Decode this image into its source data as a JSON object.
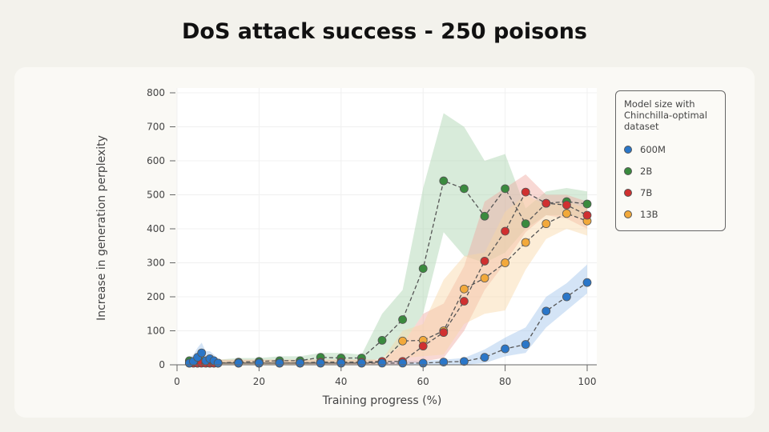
{
  "title": "DoS attack success - 250 poisons",
  "chart_data": {
    "type": "line",
    "title": "DoS attack success - 250 poisons",
    "xlabel": "Training progress (%)",
    "ylabel": "Increase in generation perplexity",
    "xlim": [
      0,
      100
    ],
    "ylim": [
      0,
      800
    ],
    "xticks": [
      "0",
      "20",
      "40",
      "60",
      "80",
      "100"
    ],
    "yticks": [
      "0",
      "100",
      "200",
      "300",
      "400",
      "500",
      "600",
      "700",
      "800"
    ],
    "grid": true,
    "legend_position": "right",
    "legend_title": "Model size with Chinchilla-optimal dataset",
    "x": [
      3,
      4,
      5,
      6,
      7,
      8,
      9,
      10,
      15,
      20,
      25,
      30,
      35,
      40,
      45,
      50,
      55,
      60,
      65,
      70,
      75,
      80,
      85,
      90,
      95,
      100
    ],
    "series": [
      {
        "name": "600M",
        "color": "#2a76c8",
        "band_color": "#9fc3ea",
        "values": [
          5,
          10,
          22,
          35,
          12,
          18,
          12,
          5,
          5,
          5,
          5,
          5,
          5,
          5,
          5,
          5,
          5,
          5,
          8,
          10,
          22,
          47,
          60,
          158,
          200,
          242
        ],
        "lower": [
          0,
          0,
          5,
          10,
          0,
          5,
          0,
          0,
          0,
          0,
          0,
          0,
          0,
          0,
          0,
          0,
          0,
          0,
          0,
          0,
          5,
          25,
          35,
          110,
          160,
          210
        ],
        "upper": [
          20,
          30,
          50,
          65,
          40,
          40,
          30,
          15,
          12,
          12,
          12,
          12,
          12,
          12,
          12,
          12,
          12,
          12,
          15,
          20,
          45,
          80,
          110,
          200,
          240,
          295
        ]
      },
      {
        "name": "2B",
        "color": "#3a8a3e",
        "band_color": "#a8d2ad",
        "values": [
          12,
          8,
          5,
          10,
          8,
          5,
          5,
          5,
          8,
          10,
          12,
          12,
          22,
          20,
          20,
          72,
          133,
          283,
          541,
          518,
          437,
          518,
          415,
          475,
          480,
          473
        ],
        "lower": [
          0,
          0,
          0,
          0,
          0,
          0,
          0,
          0,
          0,
          0,
          0,
          0,
          5,
          5,
          5,
          20,
          60,
          150,
          390,
          320,
          300,
          330,
          400,
          440,
          440,
          430
        ],
        "upper": [
          25,
          20,
          15,
          20,
          20,
          15,
          15,
          15,
          20,
          20,
          25,
          25,
          35,
          35,
          30,
          150,
          220,
          520,
          740,
          700,
          600,
          620,
          460,
          510,
          520,
          510
        ]
      },
      {
        "name": "7B",
        "color": "#d03030",
        "band_color": "#f0a9a0",
        "values": [
          5,
          5,
          5,
          5,
          5,
          5,
          5,
          5,
          5,
          5,
          5,
          5,
          8,
          8,
          8,
          10,
          10,
          55,
          95,
          187,
          305,
          393,
          508,
          475,
          470,
          440
        ],
        "lower": [
          0,
          0,
          0,
          0,
          0,
          0,
          0,
          0,
          0,
          0,
          0,
          0,
          0,
          0,
          0,
          0,
          0,
          10,
          20,
          100,
          220,
          300,
          390,
          440,
          430,
          400
        ],
        "upper": [
          15,
          15,
          15,
          15,
          15,
          15,
          15,
          15,
          15,
          15,
          15,
          15,
          15,
          15,
          15,
          15,
          60,
          150,
          180,
          290,
          480,
          520,
          560,
          500,
          500,
          480
        ]
      },
      {
        "name": "13B",
        "color": "#f2a93b",
        "band_color": "#f8d6a6",
        "values": [
          5,
          5,
          5,
          5,
          5,
          5,
          5,
          5,
          5,
          5,
          5,
          5,
          5,
          5,
          5,
          8,
          70,
          72,
          100,
          223,
          255,
          300,
          360,
          415,
          445,
          423
        ],
        "lower": [
          0,
          0,
          0,
          0,
          0,
          0,
          0,
          0,
          0,
          0,
          0,
          0,
          0,
          0,
          0,
          0,
          20,
          25,
          30,
          120,
          150,
          160,
          280,
          370,
          400,
          380
        ],
        "upper": [
          15,
          15,
          15,
          15,
          15,
          15,
          15,
          15,
          15,
          15,
          15,
          15,
          15,
          15,
          15,
          15,
          100,
          120,
          250,
          320,
          330,
          450,
          500,
          470,
          480,
          460
        ]
      }
    ]
  }
}
